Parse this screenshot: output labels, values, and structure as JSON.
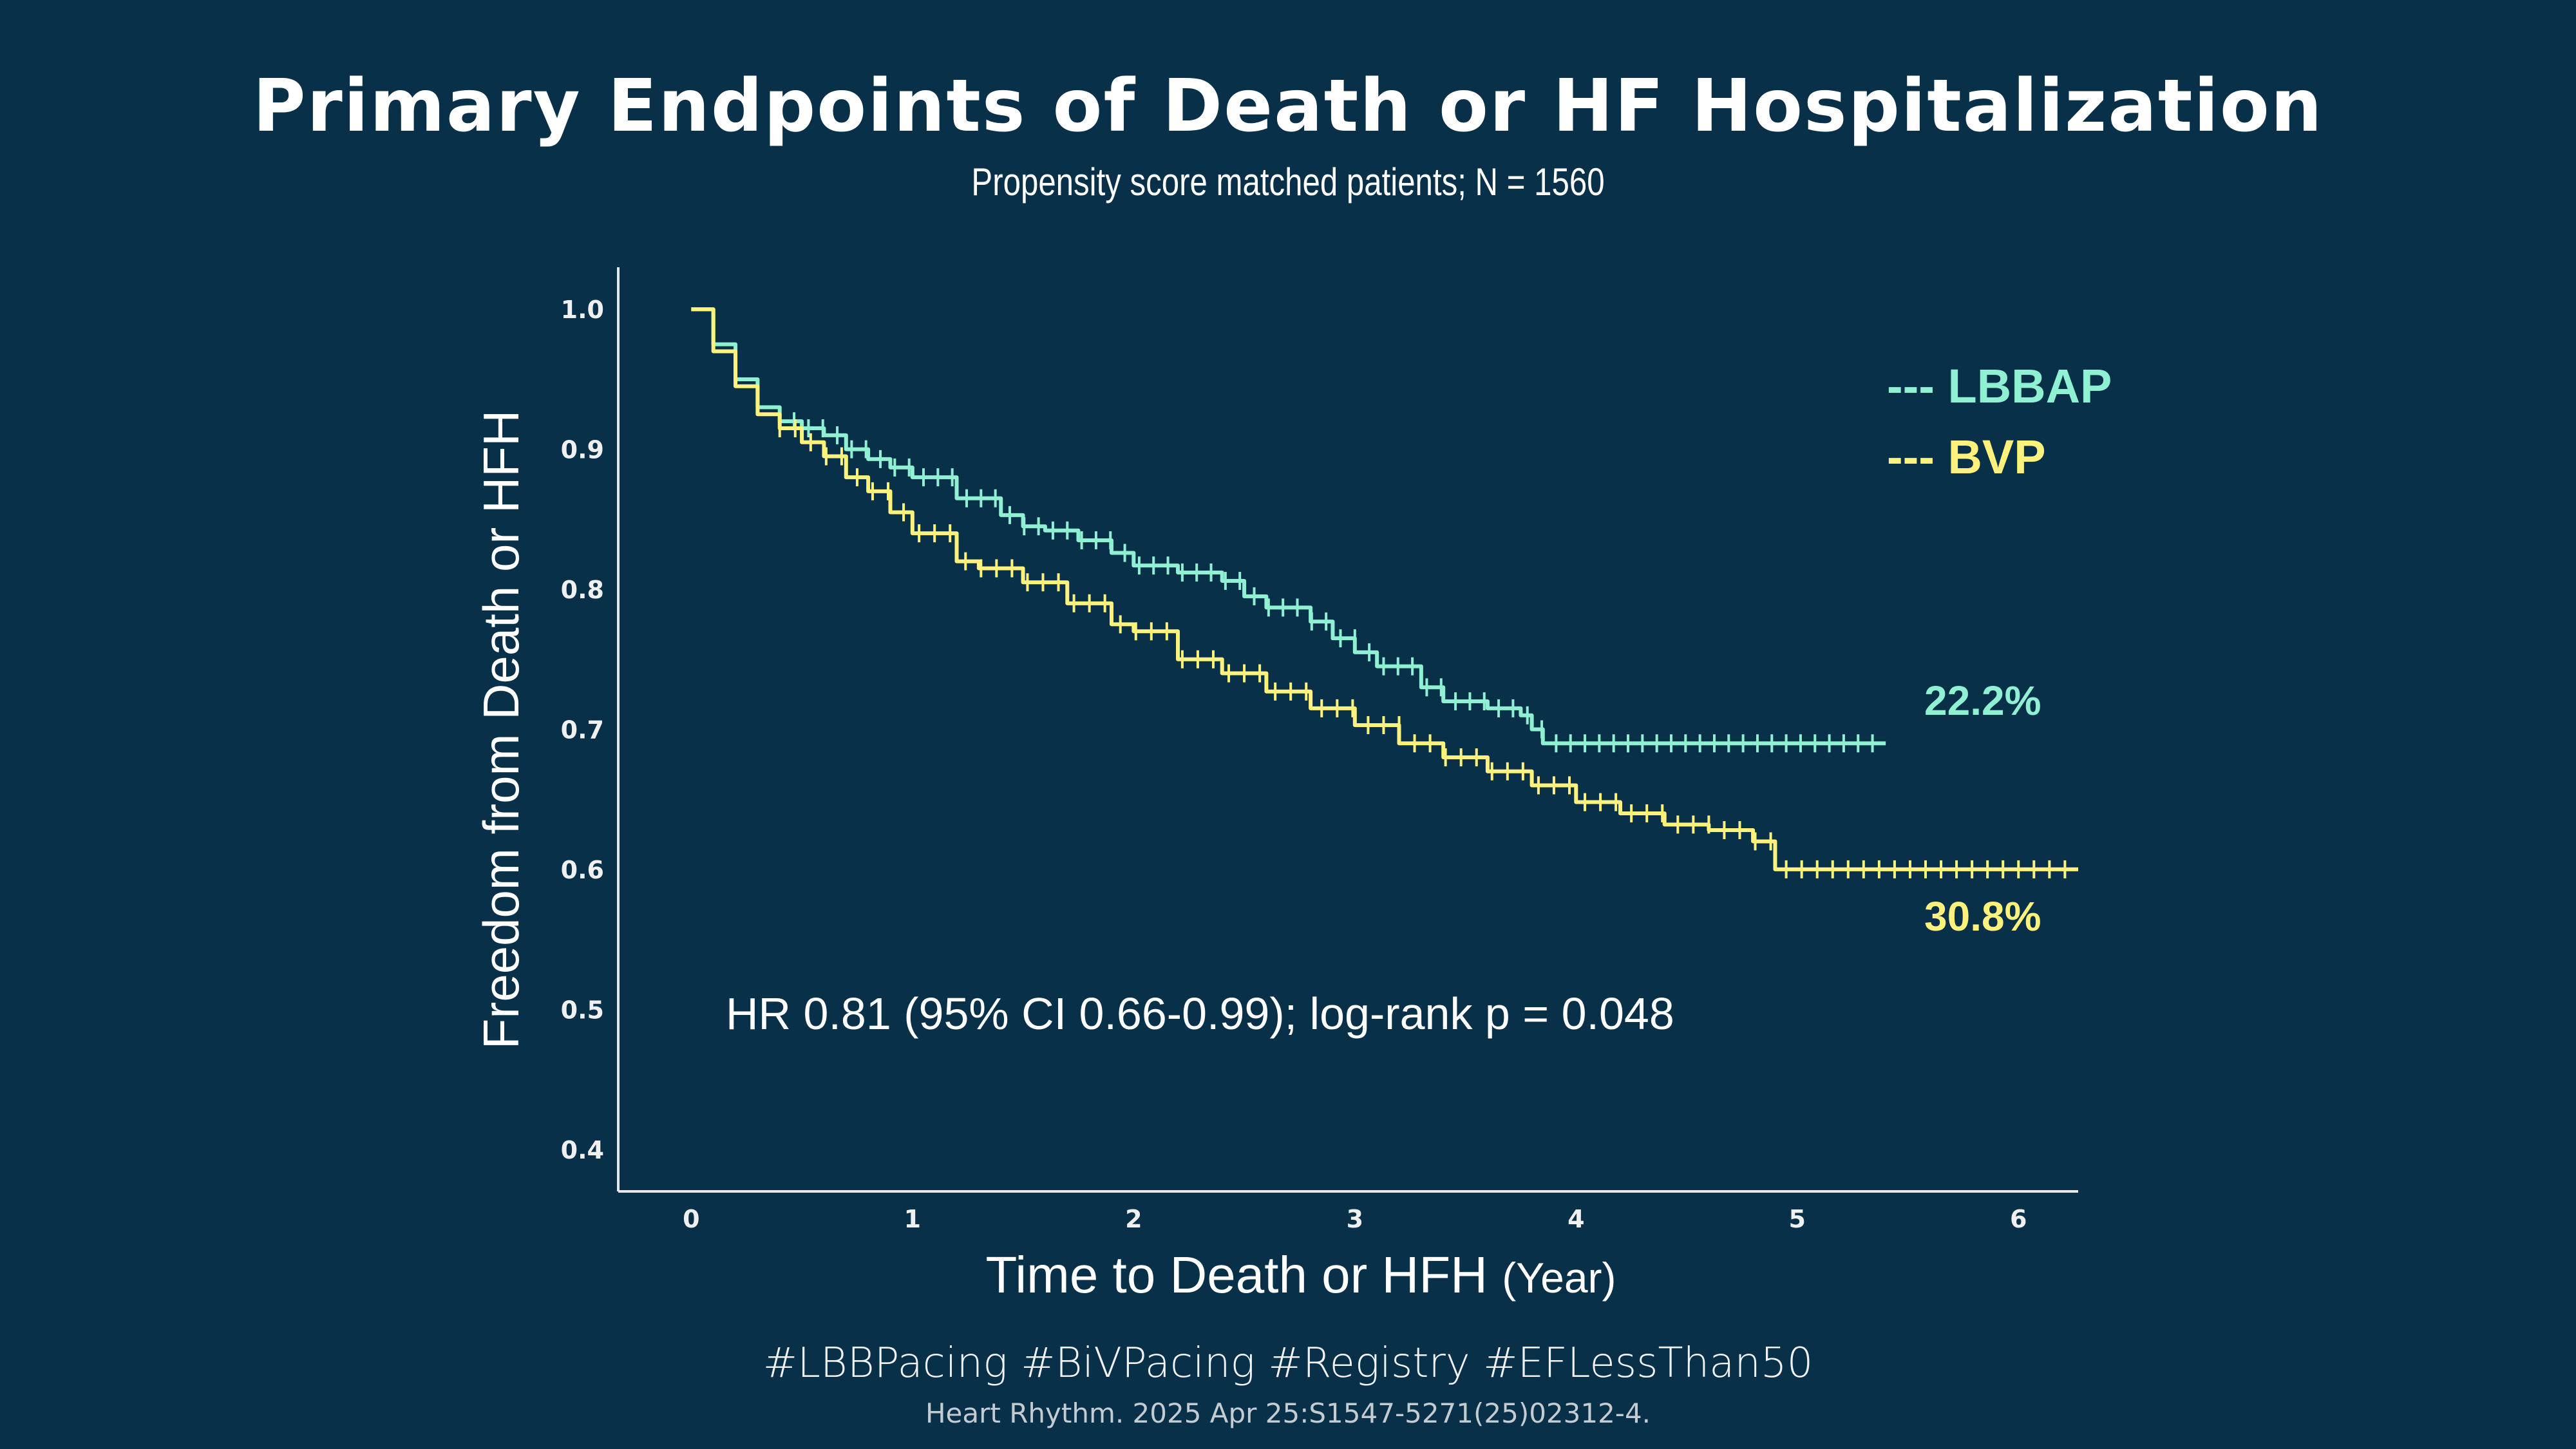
{
  "title": "Primary Endpoints of Death or HF Hospitalization",
  "subtitle": "Propensity score matched patients; N = 1560",
  "footer": {
    "hashtags": "#LBBPacing #BiVPacing #Registry #EFLessThan50",
    "citation": "Heart Rhythm. 2025 Apr 25:S1547-5271(25)02312-4."
  },
  "chart_data": {
    "type": "line",
    "title": "Primary Endpoints of Death or HF Hospitalization",
    "xlabel": "Time to Death or HFH",
    "xlabel_unit": "(Year)",
    "ylabel": "Freedom from Death or HFH",
    "xlim": [
      -0.33,
      6.27
    ],
    "ylim": [
      0.37,
      1.03
    ],
    "x_ticks": [
      0,
      1,
      2,
      3,
      4,
      5,
      6
    ],
    "y_ticks": [
      0.4,
      0.5,
      0.6,
      0.7,
      0.8,
      0.9,
      1.0
    ],
    "y_tick_labels": [
      "0.4",
      "0.5",
      "0.6",
      "0.7",
      "0.8",
      "0.9",
      "1.0"
    ],
    "grid": false,
    "legend_position": "top-right",
    "series": [
      {
        "name": "LBBAP",
        "legend_label": "--- LBBAP",
        "color": "#8ff0d2",
        "end_label": "22.2%",
        "x": [
          0,
          0.1,
          0.2,
          0.3,
          0.4,
          0.5,
          0.6,
          0.7,
          0.8,
          0.9,
          1.0,
          1.2,
          1.4,
          1.5,
          1.6,
          1.75,
          1.9,
          2.0,
          2.2,
          2.4,
          2.5,
          2.6,
          2.8,
          2.9,
          3.0,
          3.1,
          3.3,
          3.4,
          3.6,
          3.75,
          3.8,
          3.85,
          4.0,
          4.5,
          5.0,
          5.4
        ],
        "y": [
          1.0,
          0.975,
          0.95,
          0.93,
          0.92,
          0.915,
          0.91,
          0.9,
          0.893,
          0.887,
          0.88,
          0.865,
          0.853,
          0.845,
          0.842,
          0.835,
          0.826,
          0.817,
          0.812,
          0.806,
          0.795,
          0.787,
          0.777,
          0.765,
          0.755,
          0.745,
          0.73,
          0.72,
          0.715,
          0.71,
          0.7,
          0.69,
          0.69,
          0.69,
          0.69,
          0.69
        ]
      },
      {
        "name": "BVP",
        "legend_label": "--- BVP",
        "color": "#fff27c",
        "end_label": "30.8%",
        "x": [
          0,
          0.1,
          0.2,
          0.3,
          0.4,
          0.5,
          0.6,
          0.7,
          0.8,
          0.9,
          1.0,
          1.2,
          1.3,
          1.5,
          1.7,
          1.9,
          2.0,
          2.2,
          2.4,
          2.6,
          2.8,
          3.0,
          3.2,
          3.4,
          3.6,
          3.8,
          4.0,
          4.2,
          4.4,
          4.6,
          4.8,
          4.9,
          5.2,
          5.6,
          6.0,
          6.27
        ],
        "y": [
          1.0,
          0.97,
          0.945,
          0.925,
          0.915,
          0.905,
          0.895,
          0.88,
          0.87,
          0.855,
          0.84,
          0.82,
          0.815,
          0.805,
          0.79,
          0.775,
          0.77,
          0.75,
          0.74,
          0.727,
          0.715,
          0.703,
          0.69,
          0.68,
          0.67,
          0.66,
          0.648,
          0.64,
          0.632,
          0.628,
          0.62,
          0.6,
          0.6,
          0.6,
          0.6,
          0.6
        ]
      }
    ],
    "annotation": "HR 0.81 (95% CI 0.66-0.99); log-rank p = 0.048"
  }
}
